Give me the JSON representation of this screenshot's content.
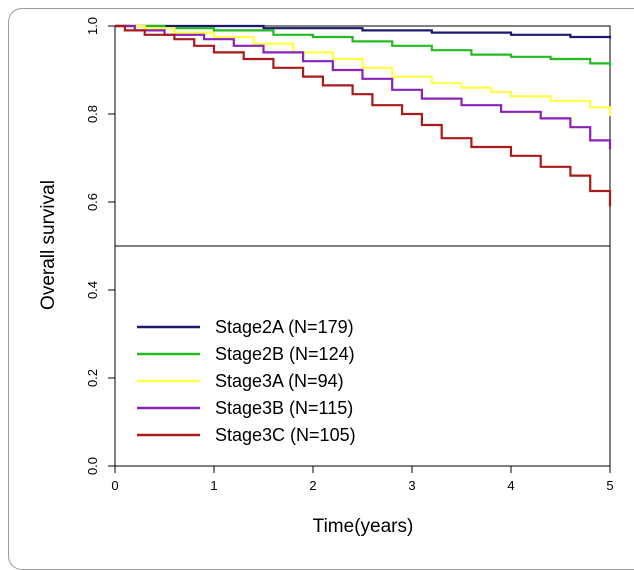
{
  "chart_data": {
    "type": "line",
    "title": "",
    "xlabel": "Time(years)",
    "ylabel": "Overall survival",
    "xlim": [
      0,
      5
    ],
    "ylim": [
      0,
      1
    ],
    "x_ticks": [
      0,
      1,
      2,
      3,
      4,
      5
    ],
    "y_ticks": [
      0.0,
      0.2,
      0.4,
      0.6,
      0.8,
      1.0
    ],
    "x_tick_labels": [
      "0",
      "1",
      "2",
      "3",
      "4",
      "5"
    ],
    "y_tick_labels": [
      "0.0",
      "0.2",
      "0.4",
      "0.6",
      "0.8",
      "1.0"
    ],
    "reference_line_y": 0.5,
    "legend_position": "bottom-left",
    "grid": false,
    "step": true,
    "series": [
      {
        "name": "Stage2A (N=179)",
        "color": "#1a1a6e",
        "points": [
          [
            0,
            1.0
          ],
          [
            1.5,
            0.995
          ],
          [
            2.5,
            0.99
          ],
          [
            3.2,
            0.985
          ],
          [
            4.0,
            0.98
          ],
          [
            4.6,
            0.975
          ],
          [
            5.0,
            0.972
          ]
        ]
      },
      {
        "name": "Stage2B (N=124)",
        "color": "#22bb22",
        "points": [
          [
            0,
            1.0
          ],
          [
            0.5,
            0.995
          ],
          [
            1.0,
            0.99
          ],
          [
            1.6,
            0.98
          ],
          [
            2.0,
            0.975
          ],
          [
            2.4,
            0.965
          ],
          [
            2.8,
            0.955
          ],
          [
            3.2,
            0.945
          ],
          [
            3.6,
            0.935
          ],
          [
            4.0,
            0.93
          ],
          [
            4.4,
            0.925
          ],
          [
            4.8,
            0.915
          ],
          [
            5.0,
            0.908
          ]
        ]
      },
      {
        "name": "Stage3A (N=94)",
        "color": "#ffff44",
        "points": [
          [
            0,
            1.0
          ],
          [
            0.3,
            0.995
          ],
          [
            0.6,
            0.985
          ],
          [
            1.0,
            0.975
          ],
          [
            1.4,
            0.96
          ],
          [
            1.8,
            0.94
          ],
          [
            2.2,
            0.925
          ],
          [
            2.5,
            0.905
          ],
          [
            2.8,
            0.885
          ],
          [
            3.2,
            0.87
          ],
          [
            3.5,
            0.86
          ],
          [
            3.8,
            0.85
          ],
          [
            4.0,
            0.84
          ],
          [
            4.4,
            0.83
          ],
          [
            4.8,
            0.815
          ],
          [
            5.0,
            0.795
          ]
        ]
      },
      {
        "name": "Stage3B (N=115)",
        "color": "#8822bb",
        "points": [
          [
            0,
            1.0
          ],
          [
            0.2,
            0.99
          ],
          [
            0.5,
            0.98
          ],
          [
            0.9,
            0.97
          ],
          [
            1.2,
            0.955
          ],
          [
            1.5,
            0.94
          ],
          [
            1.9,
            0.92
          ],
          [
            2.2,
            0.9
          ],
          [
            2.5,
            0.88
          ],
          [
            2.8,
            0.855
          ],
          [
            3.1,
            0.835
          ],
          [
            3.5,
            0.82
          ],
          [
            3.9,
            0.805
          ],
          [
            4.3,
            0.79
          ],
          [
            4.6,
            0.77
          ],
          [
            4.8,
            0.74
          ],
          [
            5.0,
            0.72
          ]
        ]
      },
      {
        "name": "Stage3C (N=105)",
        "color": "#aa1a1a",
        "points": [
          [
            0,
            1.0
          ],
          [
            0.1,
            0.99
          ],
          [
            0.3,
            0.98
          ],
          [
            0.6,
            0.97
          ],
          [
            0.8,
            0.955
          ],
          [
            1.0,
            0.94
          ],
          [
            1.3,
            0.925
          ],
          [
            1.6,
            0.905
          ],
          [
            1.9,
            0.885
          ],
          [
            2.1,
            0.865
          ],
          [
            2.4,
            0.845
          ],
          [
            2.6,
            0.82
          ],
          [
            2.9,
            0.8
          ],
          [
            3.1,
            0.775
          ],
          [
            3.3,
            0.745
          ],
          [
            3.6,
            0.725
          ],
          [
            4.0,
            0.705
          ],
          [
            4.3,
            0.68
          ],
          [
            4.6,
            0.66
          ],
          [
            4.8,
            0.625
          ],
          [
            5.0,
            0.59
          ]
        ]
      }
    ]
  }
}
